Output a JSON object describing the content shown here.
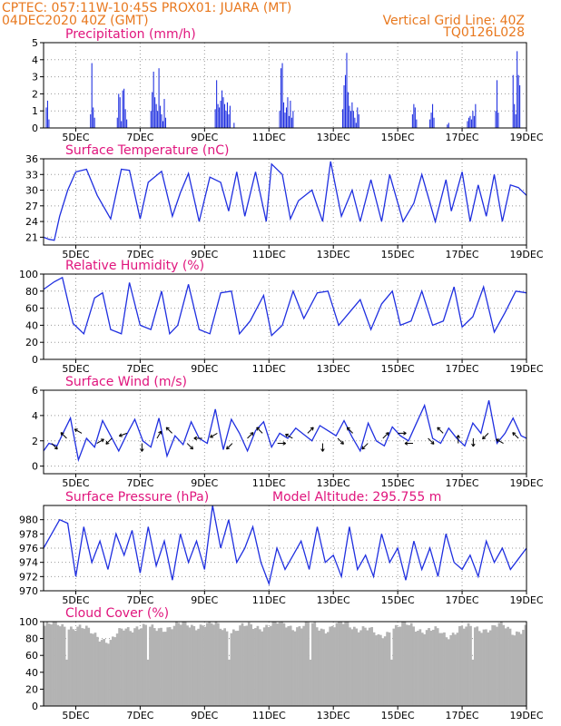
{
  "header": {
    "line1_left": "CPTEC:   057:11W-10:45S   PROX01: JUARA (MT)",
    "line2_left": "04DEC2020 40Z (GMT)",
    "line2_right": "Vertical Grid Line: 40Z",
    "line3_right": "TQ0126L028"
  },
  "colors": {
    "header": "#e8781e",
    "title": "#e0157d",
    "series": "#1f2fe0",
    "cloud": "#b3b3b3",
    "grid": "#999999"
  },
  "x_axis": {
    "range_hours": [
      0,
      360
    ],
    "tick_labels": [
      "5DEC",
      "7DEC",
      "9DEC",
      "11DEC",
      "13DEC",
      "15DEC",
      "17DEC",
      "19DEC"
    ],
    "tick_hours": [
      24,
      72,
      120,
      168,
      216,
      264,
      312,
      360
    ]
  },
  "chart_data": [
    {
      "type": "bar",
      "title": "Precipitation (mm/h)",
      "ylim": [
        0,
        5
      ],
      "yticks": [
        0,
        1,
        2,
        3,
        4,
        5
      ],
      "bars": [
        [
          2,
          1.2
        ],
        [
          3,
          1.6
        ],
        [
          4,
          0.5
        ],
        [
          35,
          0.8
        ],
        [
          36,
          3.8
        ],
        [
          37,
          1.2
        ],
        [
          38,
          0.6
        ],
        [
          55,
          0.6
        ],
        [
          56,
          2.0
        ],
        [
          57,
          1.8
        ],
        [
          58,
          0.4
        ],
        [
          59,
          2.2
        ],
        [
          60,
          2.3
        ],
        [
          61,
          1.1
        ],
        [
          62,
          0.5
        ],
        [
          80,
          1.0
        ],
        [
          81,
          2.1
        ],
        [
          82,
          3.3
        ],
        [
          83,
          1.8
        ],
        [
          84,
          1.4
        ],
        [
          85,
          1.0
        ],
        [
          86,
          3.5
        ],
        [
          87,
          1.3
        ],
        [
          88,
          0.8
        ],
        [
          89,
          0.4
        ],
        [
          90,
          1.7
        ],
        [
          91,
          0.6
        ],
        [
          128,
          1.1
        ],
        [
          129,
          2.8
        ],
        [
          130,
          1.4
        ],
        [
          131,
          1.2
        ],
        [
          132,
          1.6
        ],
        [
          133,
          2.2
        ],
        [
          134,
          1.8
        ],
        [
          135,
          1.4
        ],
        [
          136,
          1.0
        ],
        [
          137,
          1.5
        ],
        [
          138,
          0.8
        ],
        [
          139,
          1.3
        ],
        [
          142,
          0.3
        ],
        [
          176,
          1.0
        ],
        [
          177,
          3.5
        ],
        [
          178,
          3.8
        ],
        [
          179,
          1.5
        ],
        [
          180,
          0.9
        ],
        [
          181,
          1.2
        ],
        [
          182,
          1.8
        ],
        [
          183,
          0.7
        ],
        [
          184,
          1.6
        ],
        [
          185,
          0.6
        ],
        [
          186,
          1.0
        ],
        [
          223,
          1.1
        ],
        [
          224,
          2.5
        ],
        [
          225,
          3.1
        ],
        [
          226,
          4.4
        ],
        [
          227,
          2.1
        ],
        [
          228,
          1.3
        ],
        [
          229,
          1.0
        ],
        [
          230,
          1.5
        ],
        [
          231,
          1.0
        ],
        [
          232,
          0.6
        ],
        [
          233,
          0.3
        ],
        [
          234,
          1.2
        ],
        [
          235,
          0.8
        ],
        [
          275,
          0.8
        ],
        [
          276,
          1.4
        ],
        [
          277,
          1.2
        ],
        [
          278,
          0.5
        ],
        [
          288,
          0.5
        ],
        [
          289,
          0.9
        ],
        [
          290,
          1.4
        ],
        [
          291,
          0.6
        ],
        [
          301,
          0.2
        ],
        [
          302,
          0.3
        ],
        [
          316,
          0.4
        ],
        [
          317,
          0.6
        ],
        [
          318,
          0.7
        ],
        [
          319,
          0.5
        ],
        [
          320,
          1.0
        ],
        [
          321,
          0.7
        ],
        [
          322,
          1.4
        ],
        [
          337,
          1.0
        ],
        [
          338,
          2.8
        ],
        [
          339,
          0.9
        ],
        [
          350,
          3.1
        ],
        [
          351,
          1.4
        ],
        [
          352,
          0.8
        ],
        [
          353,
          4.5
        ],
        [
          354,
          3.1
        ],
        [
          355,
          2.5
        ]
      ]
    },
    {
      "type": "line",
      "title": "Surface Temperature (nC)",
      "ylim": [
        19.5,
        36
      ],
      "yticks": [
        21,
        24,
        27,
        30,
        33,
        36
      ],
      "series": [
        {
          "x": [
            0,
            4,
            8,
            12,
            18,
            24,
            32,
            40,
            50,
            58,
            64,
            72,
            78,
            88,
            96,
            102,
            108,
            116,
            124,
            132,
            138,
            144,
            150,
            158,
            166,
            170,
            178,
            184,
            190,
            200,
            208,
            214,
            222,
            230,
            236,
            244,
            252,
            258,
            268,
            276,
            282,
            292,
            300,
            304,
            312,
            318,
            324,
            330,
            336,
            342,
            348,
            354,
            360
          ],
          "y": [
            21,
            20.6,
            20.4,
            25,
            30,
            33.5,
            34,
            29,
            24.5,
            34,
            33.8,
            24.5,
            31.5,
            33.6,
            25,
            29.5,
            33.2,
            24,
            32.5,
            31.5,
            26,
            33.5,
            25,
            33.5,
            24,
            35,
            33,
            24.5,
            28,
            30,
            24,
            35.5,
            25,
            30,
            24,
            32,
            24,
            33,
            24,
            27.5,
            33,
            24,
            32,
            26,
            33.5,
            24,
            31,
            25,
            33,
            24,
            31,
            30.5,
            29
          ]
        }
      ]
    },
    {
      "type": "line",
      "title": "Relative Humidity (%)",
      "ylim": [
        0,
        100
      ],
      "yticks": [
        0,
        20,
        40,
        60,
        80,
        100
      ],
      "series": [
        {
          "x": [
            0,
            8,
            14,
            22,
            30,
            38,
            44,
            50,
            58,
            64,
            72,
            80,
            88,
            94,
            100,
            108,
            116,
            124,
            132,
            140,
            146,
            154,
            164,
            170,
            178,
            186,
            194,
            204,
            212,
            220,
            228,
            236,
            244,
            252,
            260,
            266,
            274,
            282,
            290,
            298,
            306,
            312,
            320,
            328,
            336,
            344,
            352,
            360
          ],
          "y": [
            82,
            91,
            96,
            42,
            30,
            72,
            78,
            35,
            30,
            90,
            40,
            35,
            80,
            30,
            40,
            88,
            35,
            30,
            78,
            80,
            30,
            45,
            75,
            28,
            40,
            80,
            48,
            78,
            80,
            40,
            55,
            70,
            35,
            65,
            80,
            40,
            45,
            80,
            40,
            45,
            85,
            38,
            50,
            85,
            32,
            55,
            80,
            78
          ]
        }
      ]
    },
    {
      "type": "line",
      "title": "Surface Wind (m/s)",
      "ylim": [
        -0.6,
        6
      ],
      "yticks": [
        0,
        2,
        4,
        6
      ],
      "series": [
        {
          "x": [
            0,
            4,
            10,
            14,
            20,
            26,
            32,
            38,
            44,
            50,
            56,
            62,
            68,
            74,
            80,
            86,
            92,
            98,
            104,
            110,
            116,
            122,
            128,
            134,
            140,
            146,
            152,
            158,
            164,
            170,
            176,
            182,
            188,
            194,
            200,
            206,
            212,
            218,
            224,
            230,
            236,
            242,
            248,
            254,
            260,
            266,
            272,
            278,
            284,
            290,
            296,
            302,
            308,
            314,
            320,
            326,
            332,
            338,
            344,
            350,
            356,
            360
          ],
          "y": [
            1.2,
            1.8,
            1.6,
            2.5,
            3.8,
            0.5,
            2.2,
            1.5,
            3.6,
            2.4,
            1.2,
            2.5,
            3.7,
            2.0,
            1.5,
            3.8,
            0.8,
            2.4,
            1.7,
            3.5,
            2.2,
            1.8,
            4.5,
            1.3,
            3.7,
            2.6,
            1.2,
            2.8,
            3.5,
            1.5,
            2.6,
            2.2,
            3.0,
            2.5,
            2.0,
            3.2,
            2.8,
            2.4,
            3.6,
            2.3,
            1.2,
            3.4,
            2.0,
            1.6,
            3.1,
            2.4,
            2.0,
            3.4,
            4.8,
            2.2,
            1.8,
            3.0,
            2.2,
            1.6,
            3.4,
            2.6,
            5.2,
            1.8,
            2.6,
            3.8,
            2.4,
            2.2
          ]
        }
      ],
      "wind_arrows_deg": [
        135,
        315,
        300,
        60,
        225,
        250,
        180,
        30,
        315,
        135,
        270,
        240,
        225,
        45,
        315,
        90,
        300,
        45,
        180,
        135,
        315,
        225,
        45,
        90,
        270,
        135,
        315,
        0,
        180,
        225,
        300,
        315
      ]
    },
    {
      "type": "line",
      "title": "Surface Pressure (hPa)",
      "annotation": "Model Altitude: 295.755 m",
      "ylim": [
        970,
        982
      ],
      "yticks": [
        970,
        972,
        974,
        976,
        978,
        980
      ],
      "series": [
        {
          "x": [
            0,
            6,
            12,
            18,
            24,
            30,
            36,
            42,
            48,
            54,
            60,
            66,
            72,
            78,
            84,
            90,
            96,
            102,
            108,
            114,
            120,
            126,
            132,
            138,
            144,
            150,
            156,
            162,
            168,
            174,
            180,
            186,
            192,
            198,
            204,
            210,
            216,
            222,
            228,
            234,
            240,
            246,
            252,
            258,
            264,
            270,
            276,
            282,
            288,
            294,
            300,
            306,
            312,
            318,
            324,
            330,
            336,
            342,
            348,
            354,
            360
          ],
          "y": [
            976,
            978,
            980,
            979.5,
            972,
            979,
            974,
            977,
            973,
            978,
            975,
            978.5,
            972.5,
            979,
            973.5,
            977,
            971.5,
            978,
            974,
            977,
            973,
            982,
            976,
            980,
            974,
            976,
            979,
            974,
            971,
            976,
            973,
            975,
            977,
            973,
            979,
            974,
            975,
            972,
            979,
            973,
            975,
            972,
            978,
            974,
            976,
            971.5,
            977,
            973,
            976,
            972,
            978,
            974,
            973,
            975,
            972,
            977,
            974,
            976,
            973,
            974.5,
            976
          ]
        }
      ]
    },
    {
      "type": "area",
      "title": "Cloud Cover (%)",
      "ylim": [
        0,
        100
      ],
      "yticks": [
        0,
        20,
        40,
        60,
        80,
        100
      ],
      "x": [
        0,
        10,
        20,
        30,
        40,
        50,
        60,
        70,
        80,
        90,
        100,
        110,
        120,
        130,
        140,
        150,
        160,
        170,
        180,
        190,
        200,
        210,
        220,
        230,
        240,
        250,
        260,
        270,
        280,
        290,
        300,
        310,
        320,
        330,
        340,
        350,
        360
      ],
      "values": [
        95,
        96,
        95,
        90,
        85,
        75,
        92,
        95,
        90,
        94,
        95,
        96,
        97,
        94,
        90,
        93,
        95,
        96,
        97,
        94,
        95,
        92,
        97,
        95,
        93,
        80,
        94,
        95,
        92,
        90,
        82,
        94,
        90,
        93,
        95,
        88,
        94
      ]
    }
  ]
}
